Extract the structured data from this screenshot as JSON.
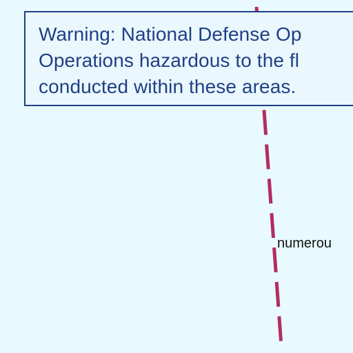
{
  "map": {
    "background_color": "#e8fafd",
    "route_color": "#b32c62",
    "warning_text_color": "#203f85",
    "warning_border_color": "#1f3f84"
  },
  "warning": {
    "lines": [
      "Warning: National Defense Op",
      "Operations hazardous to the fl",
      "conducted within these areas."
    ]
  },
  "labels": {
    "place": "numerou"
  }
}
